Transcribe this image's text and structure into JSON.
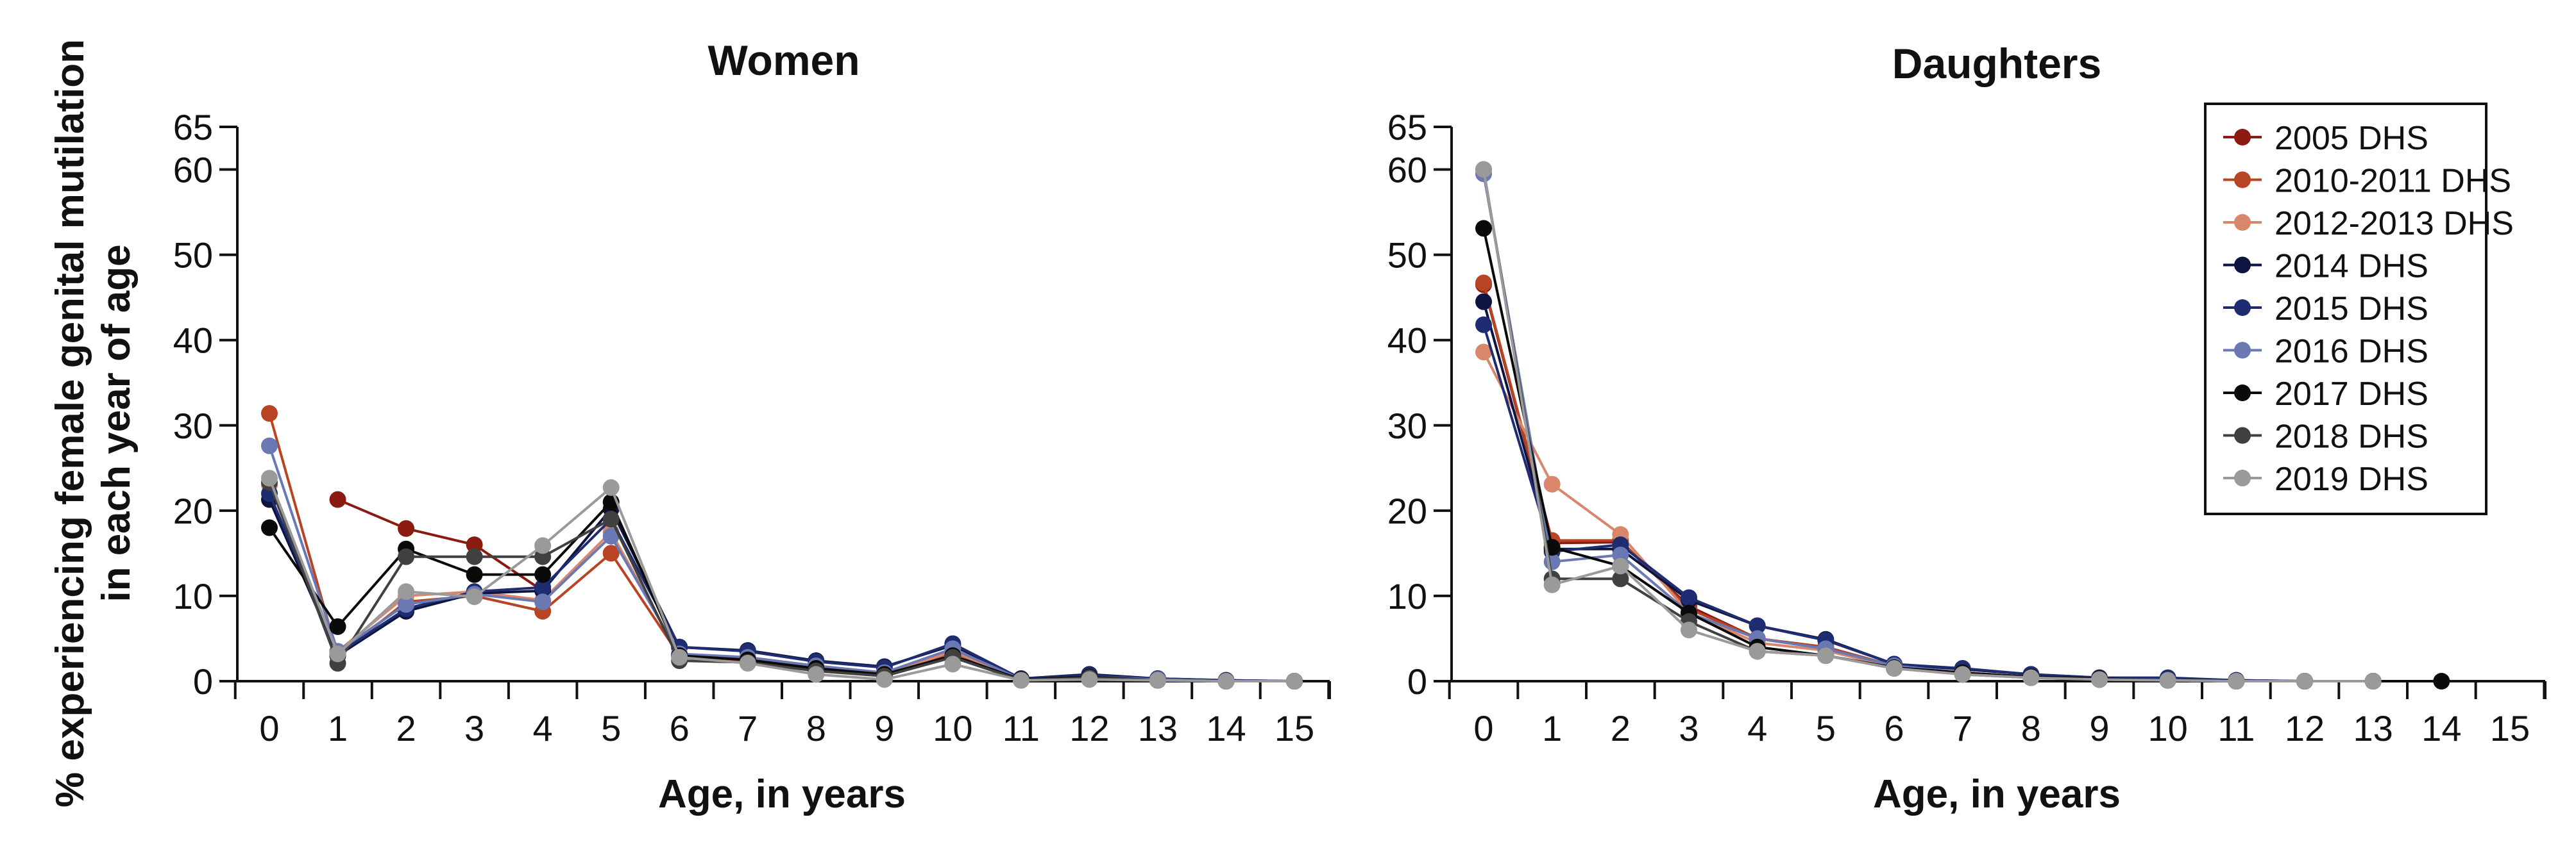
{
  "chart_data": [
    {
      "type": "line",
      "title": "Women",
      "xlabel": "Age, in years",
      "ylabel": "% experiencing female genital mutilation in each year of age",
      "x": [
        0,
        1,
        2,
        3,
        4,
        5,
        6,
        7,
        8,
        9,
        10,
        11,
        12,
        13,
        14,
        15
      ],
      "xlim": [
        0,
        15
      ],
      "ylim": [
        0,
        65
      ],
      "yticks": [
        0,
        10,
        20,
        30,
        40,
        50,
        60,
        65
      ],
      "grid": false,
      "series": [
        {
          "name": "2005 DHS",
          "color": "#8b1a10",
          "values": [
            null,
            21.3,
            17.9,
            16.0,
            10.6,
            null,
            null,
            null,
            null,
            null,
            null,
            null,
            null,
            null,
            null,
            null
          ]
        },
        {
          "name": "2010-2011 DHS",
          "color": "#b84424",
          "values": [
            31.4,
            3.0,
            9.3,
            10.0,
            8.2,
            15.0,
            3.0,
            2.4,
            1.2,
            0.6,
            3.4,
            0.2,
            0.4,
            0.1,
            0,
            0
          ]
        },
        {
          "name": "2012-2013 DHS",
          "color": "#d9876a",
          "values": [
            23.0,
            3.5,
            10.0,
            10.5,
            9.5,
            17.5,
            3.0,
            2.6,
            1.5,
            0.8,
            3.5,
            0.2,
            0.5,
            0.1,
            0,
            0
          ]
        },
        {
          "name": "2014 DHS",
          "color": "#0d1440",
          "values": [
            21.3,
            3.0,
            8.2,
            10.3,
            10.6,
            20.2,
            4.0,
            3.6,
            2.4,
            1.7,
            4.2,
            0.3,
            0.8,
            0.3,
            0.1,
            0
          ]
        },
        {
          "name": "2015 DHS",
          "color": "#1e2c72",
          "values": [
            22.0,
            3.2,
            8.5,
            10.5,
            11.0,
            19.0,
            4.0,
            3.5,
            2.3,
            1.6,
            4.4,
            0.3,
            0.7,
            0.3,
            0.1,
            0
          ]
        },
        {
          "name": "2016 DHS",
          "color": "#6a78b4",
          "values": [
            27.6,
            3.5,
            9.0,
            10.2,
            9.3,
            17.0,
            3.2,
            2.8,
            1.8,
            1.0,
            3.8,
            0.2,
            0.5,
            0.2,
            0,
            0
          ]
        },
        {
          "name": "2017 DHS",
          "color": "#0a0a0a",
          "values": [
            18.0,
            6.4,
            15.5,
            12.5,
            12.5,
            21.0,
            3.0,
            2.5,
            1.5,
            0.8,
            3.0,
            0.2,
            0.5,
            0.1,
            0,
            0
          ]
        },
        {
          "name": "2018 DHS",
          "color": "#404040",
          "values": [
            23.3,
            2.1,
            14.6,
            14.6,
            14.6,
            19.0,
            2.4,
            2.2,
            1.2,
            0.6,
            2.8,
            0.1,
            0.4,
            0.1,
            0,
            0
          ]
        },
        {
          "name": "2019 DHS",
          "color": "#9a9a9a",
          "values": [
            23.8,
            3.2,
            10.5,
            9.9,
            15.9,
            22.7,
            2.8,
            2.1,
            0.8,
            0.2,
            2.0,
            0.1,
            0.2,
            0.1,
            0,
            0
          ]
        }
      ]
    },
    {
      "type": "line",
      "title": "Daughters",
      "xlabel": "Age, in years",
      "x": [
        0,
        1,
        2,
        3,
        4,
        5,
        6,
        7,
        8,
        9,
        10,
        11,
        12,
        13,
        14,
        15
      ],
      "xlim": [
        0,
        15
      ],
      "ylim": [
        0,
        65
      ],
      "yticks": [
        0,
        10,
        20,
        30,
        40,
        50,
        60,
        65
      ],
      "grid": false,
      "legend_position": "top-right",
      "series": [
        {
          "name": "2005 DHS",
          "color": "#8b1a10",
          "values": [
            46.5,
            16.2,
            16.3,
            8.8,
            5.0,
            4.0,
            1.8,
            1.0,
            0.5,
            0.2,
            0.1,
            0,
            0,
            0,
            null,
            null
          ]
        },
        {
          "name": "2010-2011 DHS",
          "color": "#b84424",
          "values": [
            46.7,
            16.5,
            16.5,
            8.5,
            5.0,
            4.0,
            1.8,
            1.0,
            0.5,
            0.2,
            0.1,
            0,
            0,
            0,
            null,
            null
          ]
        },
        {
          "name": "2012-2013 DHS",
          "color": "#d9876a",
          "values": [
            38.6,
            23.1,
            17.2,
            8.0,
            4.5,
            3.6,
            1.6,
            1.0,
            0.5,
            0.2,
            0.1,
            0,
            0,
            0,
            null,
            null
          ]
        },
        {
          "name": "2014 DHS",
          "color": "#0d1440",
          "values": [
            44.5,
            15.5,
            15.5,
            9.5,
            6.5,
            4.9,
            2.0,
            1.4,
            0.8,
            0.4,
            0.3,
            0.1,
            0,
            0,
            null,
            null
          ]
        },
        {
          "name": "2015 DHS",
          "color": "#1e2c72",
          "values": [
            41.8,
            15.2,
            16.0,
            9.8,
            6.5,
            4.8,
            2.0,
            1.5,
            0.8,
            0.4,
            0.4,
            0.1,
            0,
            0,
            null,
            null
          ]
        },
        {
          "name": "2016 DHS",
          "color": "#6a78b4",
          "values": [
            59.5,
            14.0,
            14.8,
            8.0,
            5.0,
            3.8,
            1.8,
            1.0,
            0.5,
            0.2,
            0.1,
            0,
            0,
            0,
            null,
            null
          ]
        },
        {
          "name": "2017 DHS",
          "color": "#0a0a0a",
          "values": [
            53.1,
            15.7,
            13.5,
            8.0,
            4.0,
            3.0,
            1.6,
            1.0,
            0.5,
            0.3,
            0.1,
            0,
            0,
            0,
            0,
            null
          ]
        },
        {
          "name": "2018 DHS",
          "color": "#404040",
          "values": [
            60.0,
            12.0,
            12.0,
            7.0,
            3.5,
            3.0,
            1.5,
            0.8,
            0.4,
            0.2,
            0.1,
            0,
            0,
            0,
            null,
            null
          ]
        },
        {
          "name": "2019 DHS",
          "color": "#9a9a9a",
          "values": [
            60.0,
            11.3,
            13.5,
            6.0,
            3.5,
            3.0,
            1.5,
            0.8,
            0.4,
            0.2,
            0.1,
            0,
            0,
            0,
            null,
            null
          ]
        }
      ]
    }
  ]
}
